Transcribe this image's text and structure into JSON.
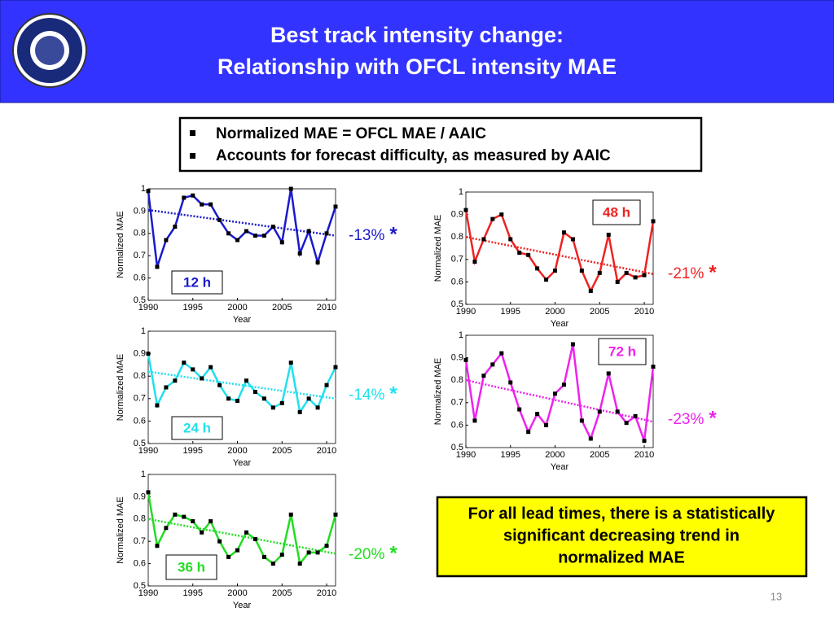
{
  "header": {
    "title": [
      "Best track intensity change:",
      "Relationship with OFCL intensity MAE"
    ]
  },
  "bullets": [
    "Normalized MAE = OFCL MAE / AAIC",
    "Accounts for forecast difficulty, as measured by AAIC"
  ],
  "chart_data": [
    {
      "type": "line",
      "label": "12 h",
      "change": "-13%",
      "significance": "*",
      "xlabel": "Year",
      "ylabel": "Normalized MAE",
      "color": "#1a1acc",
      "x": [
        1990,
        1991,
        1992,
        1993,
        1994,
        1995,
        1996,
        1997,
        1998,
        1999,
        2000,
        2001,
        2002,
        2003,
        2004,
        2005,
        2006,
        2007,
        2008,
        2009,
        2010,
        2011
      ],
      "values": [
        0.99,
        0.65,
        0.77,
        0.83,
        0.96,
        0.97,
        0.93,
        0.93,
        0.86,
        0.8,
        0.77,
        0.81,
        0.79,
        0.79,
        0.83,
        0.76,
        1.0,
        0.71,
        0.81,
        0.67,
        0.8,
        0.92
      ],
      "trend": {
        "x": [
          1990,
          2011
        ],
        "y": [
          0.905,
          0.79
        ]
      },
      "xlim": [
        1990,
        2011
      ],
      "ylim": [
        0.5,
        1
      ],
      "xticks": [
        1990,
        1995,
        2000,
        2005,
        2010
      ],
      "yticks": [
        0.5,
        0.6,
        0.7,
        0.8,
        0.9,
        1
      ]
    },
    {
      "type": "line",
      "label": "24 h",
      "change": "-14%",
      "significance": "*",
      "xlabel": "Year",
      "ylabel": "Normalized MAE",
      "color": "#22e0ee",
      "x": [
        1990,
        1991,
        1992,
        1993,
        1994,
        1995,
        1996,
        1997,
        1998,
        1999,
        2000,
        2001,
        2002,
        2003,
        2004,
        2005,
        2006,
        2007,
        2008,
        2009,
        2010,
        2011
      ],
      "values": [
        0.9,
        0.67,
        0.75,
        0.78,
        0.86,
        0.83,
        0.79,
        0.84,
        0.76,
        0.7,
        0.69,
        0.78,
        0.73,
        0.7,
        0.66,
        0.68,
        0.86,
        0.64,
        0.7,
        0.66,
        0.76,
        0.84
      ],
      "trend": {
        "x": [
          1990,
          2011
        ],
        "y": [
          0.82,
          0.7
        ]
      },
      "xlim": [
        1990,
        2011
      ],
      "ylim": [
        0.5,
        1
      ],
      "xticks": [
        1990,
        1995,
        2000,
        2005,
        2010
      ],
      "yticks": [
        0.5,
        0.6,
        0.7,
        0.8,
        0.9,
        1
      ]
    },
    {
      "type": "line",
      "label": "36 h",
      "change": "-20%",
      "significance": "*",
      "xlabel": "Year",
      "ylabel": "Normalized MAE",
      "color": "#22dd22",
      "x": [
        1990,
        1991,
        1992,
        1993,
        1994,
        1995,
        1996,
        1997,
        1998,
        1999,
        2000,
        2001,
        2002,
        2003,
        2004,
        2005,
        2006,
        2007,
        2008,
        2009,
        2010,
        2011
      ],
      "values": [
        0.92,
        0.68,
        0.76,
        0.82,
        0.81,
        0.79,
        0.74,
        0.79,
        0.7,
        0.63,
        0.66,
        0.74,
        0.71,
        0.63,
        0.6,
        0.64,
        0.82,
        0.6,
        0.65,
        0.65,
        0.68,
        0.82
      ],
      "trend": {
        "x": [
          1990,
          2011
        ],
        "y": [
          0.8,
          0.645
        ]
      },
      "xlim": [
        1990,
        2011
      ],
      "ylim": [
        0.5,
        1
      ],
      "xticks": [
        1990,
        1995,
        2000,
        2005,
        2010
      ],
      "yticks": [
        0.5,
        0.6,
        0.7,
        0.8,
        0.9,
        1
      ]
    },
    {
      "type": "line",
      "label": "48 h",
      "change": "-21%",
      "significance": "*",
      "xlabel": "Year",
      "ylabel": "Normalized MAE",
      "color": "#ee2222",
      "x": [
        1990,
        1991,
        1992,
        1993,
        1994,
        1995,
        1996,
        1997,
        1998,
        1999,
        2000,
        2001,
        2002,
        2003,
        2004,
        2005,
        2006,
        2007,
        2008,
        2009,
        2010,
        2011
      ],
      "values": [
        0.92,
        0.69,
        0.79,
        0.88,
        0.9,
        0.79,
        0.73,
        0.72,
        0.66,
        0.61,
        0.65,
        0.82,
        0.79,
        0.65,
        0.56,
        0.64,
        0.81,
        0.6,
        0.64,
        0.62,
        0.63,
        0.87
      ],
      "trend": {
        "x": [
          1990,
          2011
        ],
        "y": [
          0.8,
          0.635
        ]
      },
      "xlim": [
        1990,
        2011
      ],
      "ylim": [
        0.5,
        1
      ],
      "xticks": [
        1990,
        1995,
        2000,
        2005,
        2010
      ],
      "yticks": [
        0.5,
        0.6,
        0.7,
        0.8,
        0.9,
        1
      ]
    },
    {
      "type": "line",
      "label": "72 h",
      "change": "-23%",
      "significance": "*",
      "xlabel": "Year",
      "ylabel": "Normalized MAE",
      "color": "#ee22ee",
      "x": [
        1990,
        1991,
        1992,
        1993,
        1994,
        1995,
        1996,
        1997,
        1998,
        1999,
        2000,
        2001,
        2002,
        2003,
        2004,
        2005,
        2006,
        2007,
        2008,
        2009,
        2010,
        2011
      ],
      "values": [
        0.89,
        0.62,
        0.82,
        0.87,
        0.92,
        0.79,
        0.67,
        0.57,
        0.65,
        0.6,
        0.74,
        0.78,
        0.96,
        0.62,
        0.54,
        0.66,
        0.83,
        0.66,
        0.61,
        0.64,
        0.53,
        0.86
      ],
      "trend": {
        "x": [
          1990,
          2011
        ],
        "y": [
          0.8,
          0.615
        ]
      },
      "xlim": [
        1990,
        2011
      ],
      "ylim": [
        0.5,
        1
      ],
      "xticks": [
        1990,
        1995,
        2000,
        2005,
        2010
      ],
      "yticks": [
        0.5,
        0.6,
        0.7,
        0.8,
        0.9,
        1
      ]
    }
  ],
  "conclusion": [
    "For all lead times, there is a statistically",
    "significant decreasing trend in",
    "normalized MAE"
  ],
  "page_number": "13"
}
